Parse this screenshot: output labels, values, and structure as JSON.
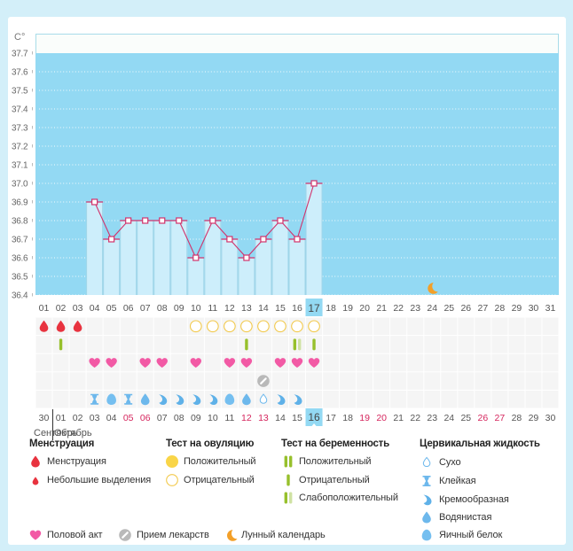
{
  "colors": {
    "plot_background": "#93d9f3",
    "bar_fill": "#cdeefb",
    "temperature_line": "#d2336c",
    "weekend_date": "#d5255d",
    "highlight": "#93d9f3",
    "menstruation": "#e8333f",
    "ovulation": "#f2c94c",
    "heart": "#f25aa5",
    "pregnancy_test": "#97c02c",
    "pregnancy_test_light": "#cfe2a3",
    "medication": "#b9b9b9",
    "cervical_fluid": "#6db8ec",
    "moon": "#f3a029"
  },
  "chart_data": {
    "type": "line",
    "title": "",
    "xlabel": "",
    "ylabel": "C°",
    "ylim": [
      36.4,
      37.7
    ],
    "yticks": [
      "37.7",
      "37.6",
      "37.5",
      "37.4",
      "37.3",
      "37.2",
      "37.1",
      "37.0",
      "36.9",
      "36.8",
      "36.7",
      "36.6",
      "36.5",
      "36.4"
    ],
    "grid": true,
    "x": [
      "01",
      "02",
      "03",
      "04",
      "05",
      "06",
      "07",
      "08",
      "09",
      "10",
      "11",
      "12",
      "13",
      "14",
      "15",
      "16",
      "17",
      "18",
      "19",
      "20",
      "21",
      "22",
      "23",
      "24",
      "25",
      "26",
      "27",
      "28",
      "29",
      "30",
      "31"
    ],
    "series": [
      {
        "values": [
          null,
          null,
          null,
          36.9,
          36.7,
          36.8,
          36.8,
          36.8,
          36.8,
          36.6,
          36.8,
          36.7,
          36.6,
          36.7,
          36.8,
          36.7,
          37.0,
          null,
          null,
          null,
          null,
          null,
          null,
          null,
          null,
          null,
          null,
          null,
          null,
          null,
          null
        ]
      }
    ],
    "highlight_day": "17",
    "moon_day": "24"
  },
  "calendar": {
    "dates": [
      {
        "label": "30",
        "weekend": false
      },
      {
        "label": "01",
        "weekend": false
      },
      {
        "label": "02",
        "weekend": false
      },
      {
        "label": "03",
        "weekend": false
      },
      {
        "label": "04",
        "weekend": false
      },
      {
        "label": "05",
        "weekend": true
      },
      {
        "label": "06",
        "weekend": true
      },
      {
        "label": "07",
        "weekend": false
      },
      {
        "label": "08",
        "weekend": false
      },
      {
        "label": "09",
        "weekend": false
      },
      {
        "label": "10",
        "weekend": false
      },
      {
        "label": "11",
        "weekend": false
      },
      {
        "label": "12",
        "weekend": true
      },
      {
        "label": "13",
        "weekend": true
      },
      {
        "label": "14",
        "weekend": false
      },
      {
        "label": "15",
        "weekend": false
      },
      {
        "label": "16",
        "weekend": false
      },
      {
        "label": "17",
        "weekend": false
      },
      {
        "label": "18",
        "weekend": false
      },
      {
        "label": "19",
        "weekend": true
      },
      {
        "label": "20",
        "weekend": true
      },
      {
        "label": "21",
        "weekend": false
      },
      {
        "label": "22",
        "weekend": false
      },
      {
        "label": "23",
        "weekend": false
      },
      {
        "label": "24",
        "weekend": false
      },
      {
        "label": "25",
        "weekend": false
      },
      {
        "label": "26",
        "weekend": true
      },
      {
        "label": "27",
        "weekend": true
      },
      {
        "label": "28",
        "weekend": false
      },
      {
        "label": "29",
        "weekend": false
      },
      {
        "label": "30",
        "weekend": false
      }
    ],
    "highlight_date": "16",
    "months": [
      "Сентябрь",
      "Октябрь"
    ]
  },
  "events": {
    "menstruation": [
      {
        "day": "01",
        "type": "menstruation"
      },
      {
        "day": "02",
        "type": "menstruation"
      },
      {
        "day": "03",
        "type": "menstruation"
      }
    ],
    "ovulation_test": [
      {
        "day": "10",
        "result": "negative"
      },
      {
        "day": "11",
        "result": "negative"
      },
      {
        "day": "12",
        "result": "negative"
      },
      {
        "day": "13",
        "result": "negative"
      },
      {
        "day": "14",
        "result": "negative"
      },
      {
        "day": "15",
        "result": "negative"
      },
      {
        "day": "16",
        "result": "negative"
      },
      {
        "day": "17",
        "result": "negative"
      }
    ],
    "pregnancy_test": [
      {
        "day": "02",
        "result": "negative"
      },
      {
        "day": "13",
        "result": "negative"
      },
      {
        "day": "16",
        "result": "weak"
      },
      {
        "day": "17",
        "result": "negative"
      }
    ],
    "intercourse": [
      "04",
      "05",
      "07",
      "08",
      "10",
      "12",
      "13",
      "15",
      "16",
      "17"
    ],
    "medication": [
      "14"
    ],
    "cervical_fluid": [
      {
        "day": "04",
        "type": "sticky"
      },
      {
        "day": "05",
        "type": "eggwhite"
      },
      {
        "day": "06",
        "type": "sticky"
      },
      {
        "day": "07",
        "type": "watery"
      },
      {
        "day": "08",
        "type": "creamy"
      },
      {
        "day": "09",
        "type": "creamy"
      },
      {
        "day": "10",
        "type": "creamy"
      },
      {
        "day": "11",
        "type": "creamy"
      },
      {
        "day": "12",
        "type": "eggwhite"
      },
      {
        "day": "13",
        "type": "watery"
      },
      {
        "day": "14",
        "type": "dry"
      },
      {
        "day": "15",
        "type": "creamy"
      },
      {
        "day": "16",
        "type": "creamy"
      }
    ]
  },
  "legend": {
    "menstruation": {
      "title": "Менструация",
      "items": [
        {
          "icon": "blood-drop",
          "label": "Менструация"
        },
        {
          "icon": "small-blood-drop",
          "label": "Небольшие выделения"
        }
      ]
    },
    "ovulation_test": {
      "title": "Тест на овуляцию",
      "items": [
        {
          "icon": "ovulation-positive",
          "label": "Положительный"
        },
        {
          "icon": "ovulation-negative",
          "label": "Отрицательный"
        }
      ]
    },
    "pregnancy_test": {
      "title": "Тест на беременность",
      "items": [
        {
          "icon": "pregnancy-positive",
          "label": "Положительный"
        },
        {
          "icon": "pregnancy-negative",
          "label": "Отрицательный"
        },
        {
          "icon": "pregnancy-weak",
          "label": "Слабоположительный"
        }
      ]
    },
    "cervical_fluid": {
      "title": "Цервикальная жидкость",
      "items": [
        {
          "icon": "cervical-dry",
          "label": "Сухо"
        },
        {
          "icon": "cervical-sticky",
          "label": "Клейкая"
        },
        {
          "icon": "cervical-creamy",
          "label": "Кремообразная"
        },
        {
          "icon": "cervical-watery",
          "label": "Водянистая"
        },
        {
          "icon": "cervical-eggwhite",
          "label": "Яичный белок"
        }
      ]
    },
    "other": [
      {
        "icon": "heart",
        "label": "Половой акт"
      },
      {
        "icon": "medication",
        "label": "Прием лекарств"
      },
      {
        "icon": "moon",
        "label": "Лунный календарь"
      }
    ]
  }
}
